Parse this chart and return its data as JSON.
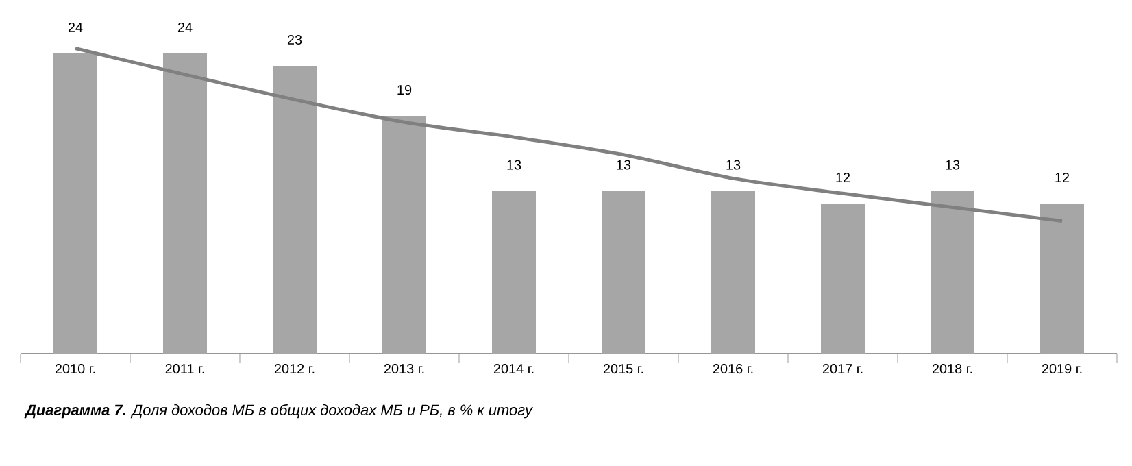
{
  "chart_data": {
    "type": "bar",
    "categories": [
      "2010 г.",
      "2011 г.",
      "2012 г.",
      "2013 г.",
      "2014 г.",
      "2015 г.",
      "2016 г.",
      "2017 г.",
      "2018 г.",
      "2019 г."
    ],
    "series": [
      {
        "color": "#a6a6a6",
        "values": [
          24,
          24,
          23,
          19,
          13,
          13,
          13,
          12,
          13,
          12
        ],
        "value_labels": [
          "24",
          "24",
          "23",
          "19",
          "13",
          "13",
          "13",
          "12",
          "13",
          "12"
        ]
      },
      {
        "type": "line",
        "color": "#808080",
        "values": [
          24.4,
          22.3,
          20.3,
          18.5,
          17.3,
          15.9,
          14.0,
          12.8,
          11.7,
          10.6
        ]
      }
    ],
    "annotations": [
      "**Диаграмма 7.** Доля доходов МБ в общих доходах МБ и РБ, в % к итогу"
    ]
  }
}
